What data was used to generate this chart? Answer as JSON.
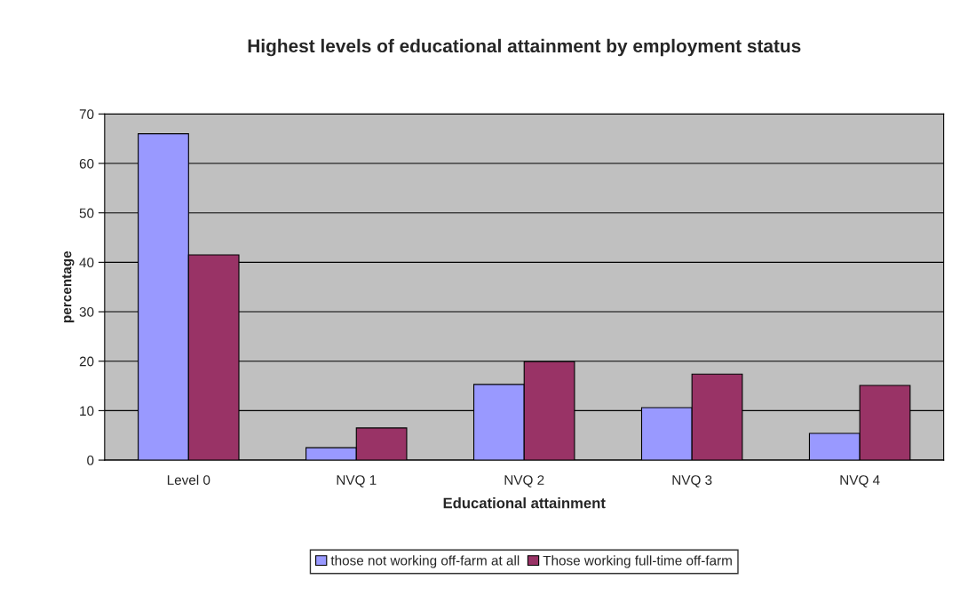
{
  "chart_data": {
    "type": "bar",
    "title": "Highest levels of educational attainment by employment status",
    "xlabel": "Educational attainment",
    "ylabel": "percentage",
    "categories": [
      "Level 0",
      "NVQ 1",
      "NVQ 2",
      "NVQ 3",
      "NVQ 4"
    ],
    "series": [
      {
        "name": "those not working off-farm at all",
        "color": "#9999ff",
        "values": [
          66,
          2.5,
          15.3,
          10.6,
          5.4
        ]
      },
      {
        "name": "Those working full-time off-farm",
        "color": "#993366",
        "values": [
          41.5,
          6.5,
          19.9,
          17.4,
          15.1
        ]
      }
    ],
    "ylim": [
      0,
      70
    ],
    "yticks": [
      0,
      10,
      20,
      30,
      40,
      50,
      60,
      70
    ],
    "grid": "y",
    "legend": "bottom"
  }
}
